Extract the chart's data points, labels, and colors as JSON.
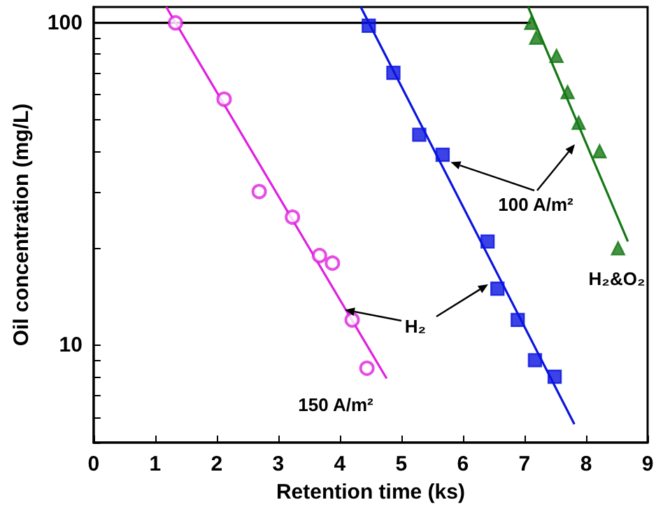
{
  "chart_data": {
    "type": "scatter",
    "xlabel": "Retention time (ks)",
    "ylabel": "Oil concentration (mg/L)",
    "log": "y",
    "xlim": [
      0,
      9
    ],
    "xticks": [
      0,
      1,
      2,
      3,
      4,
      5,
      6,
      7,
      8,
      9
    ],
    "ylim": [
      5,
      112
    ],
    "yticks": [
      {
        "value": 5,
        "label": null
      },
      {
        "value": 6,
        "label": null
      },
      {
        "value": 7,
        "label": null
      },
      {
        "value": 8,
        "label": null
      },
      {
        "value": 9,
        "label": null
      },
      10,
      {
        "value": 20,
        "label": null
      },
      {
        "value": 30,
        "label": null
      },
      {
        "value": 40,
        "label": null
      },
      {
        "value": 50,
        "label": null
      },
      {
        "value": 60,
        "label": null
      },
      {
        "value": 70,
        "label": null
      },
      {
        "value": 80,
        "label": null
      },
      {
        "value": 90,
        "label": null
      },
      100
    ],
    "grid": false,
    "series": [
      {
        "type": "line",
        "color": "#000000",
        "marker": "none",
        "x": [
          0,
          7.1
        ],
        "values": [
          100,
          100
        ]
      },
      {
        "color": "#e020e0",
        "marker": "circle",
        "x": [
          1.33,
          2.12,
          2.69,
          3.23,
          3.67,
          3.88,
          4.2,
          4.44
        ],
        "values": [
          100,
          58,
          30,
          25,
          19,
          18,
          12,
          8.5
        ]
      },
      {
        "type": "line",
        "color": "#e020e0",
        "marker": "none",
        "x": [
          1.18,
          4.76
        ],
        "values": [
          112,
          7.9
        ]
      },
      {
        "color": "#0a14e0",
        "marker": "square",
        "x": [
          4.47,
          4.87,
          5.29,
          5.67,
          6.4,
          6.56,
          6.89,
          7.17,
          7.49
        ],
        "values": [
          98,
          70,
          45,
          39,
          21,
          15,
          12,
          9,
          8
        ]
      },
      {
        "type": "line",
        "color": "#0a14e0",
        "marker": "none",
        "x": [
          4.34,
          7.81
        ],
        "values": [
          112,
          5.7
        ]
      },
      {
        "color": "#147814",
        "marker": "triangle",
        "x": [
          7.11,
          7.19,
          7.52,
          7.7,
          7.88,
          8.22,
          8.52
        ],
        "values": [
          100,
          90,
          79,
          61,
          49,
          40,
          20
        ]
      },
      {
        "type": "line",
        "color": "#147814",
        "marker": "none",
        "x": [
          7.06,
          8.68
        ],
        "values": [
          112,
          21
        ]
      }
    ],
    "annotations": [
      {
        "text": "100 A/m²",
        "x": 5.8,
        "y": 37
      },
      {
        "text": "H₂",
        "x": 4.08,
        "y": 12.9
      },
      "150 A/m²",
      "H₂&O₂"
    ]
  }
}
